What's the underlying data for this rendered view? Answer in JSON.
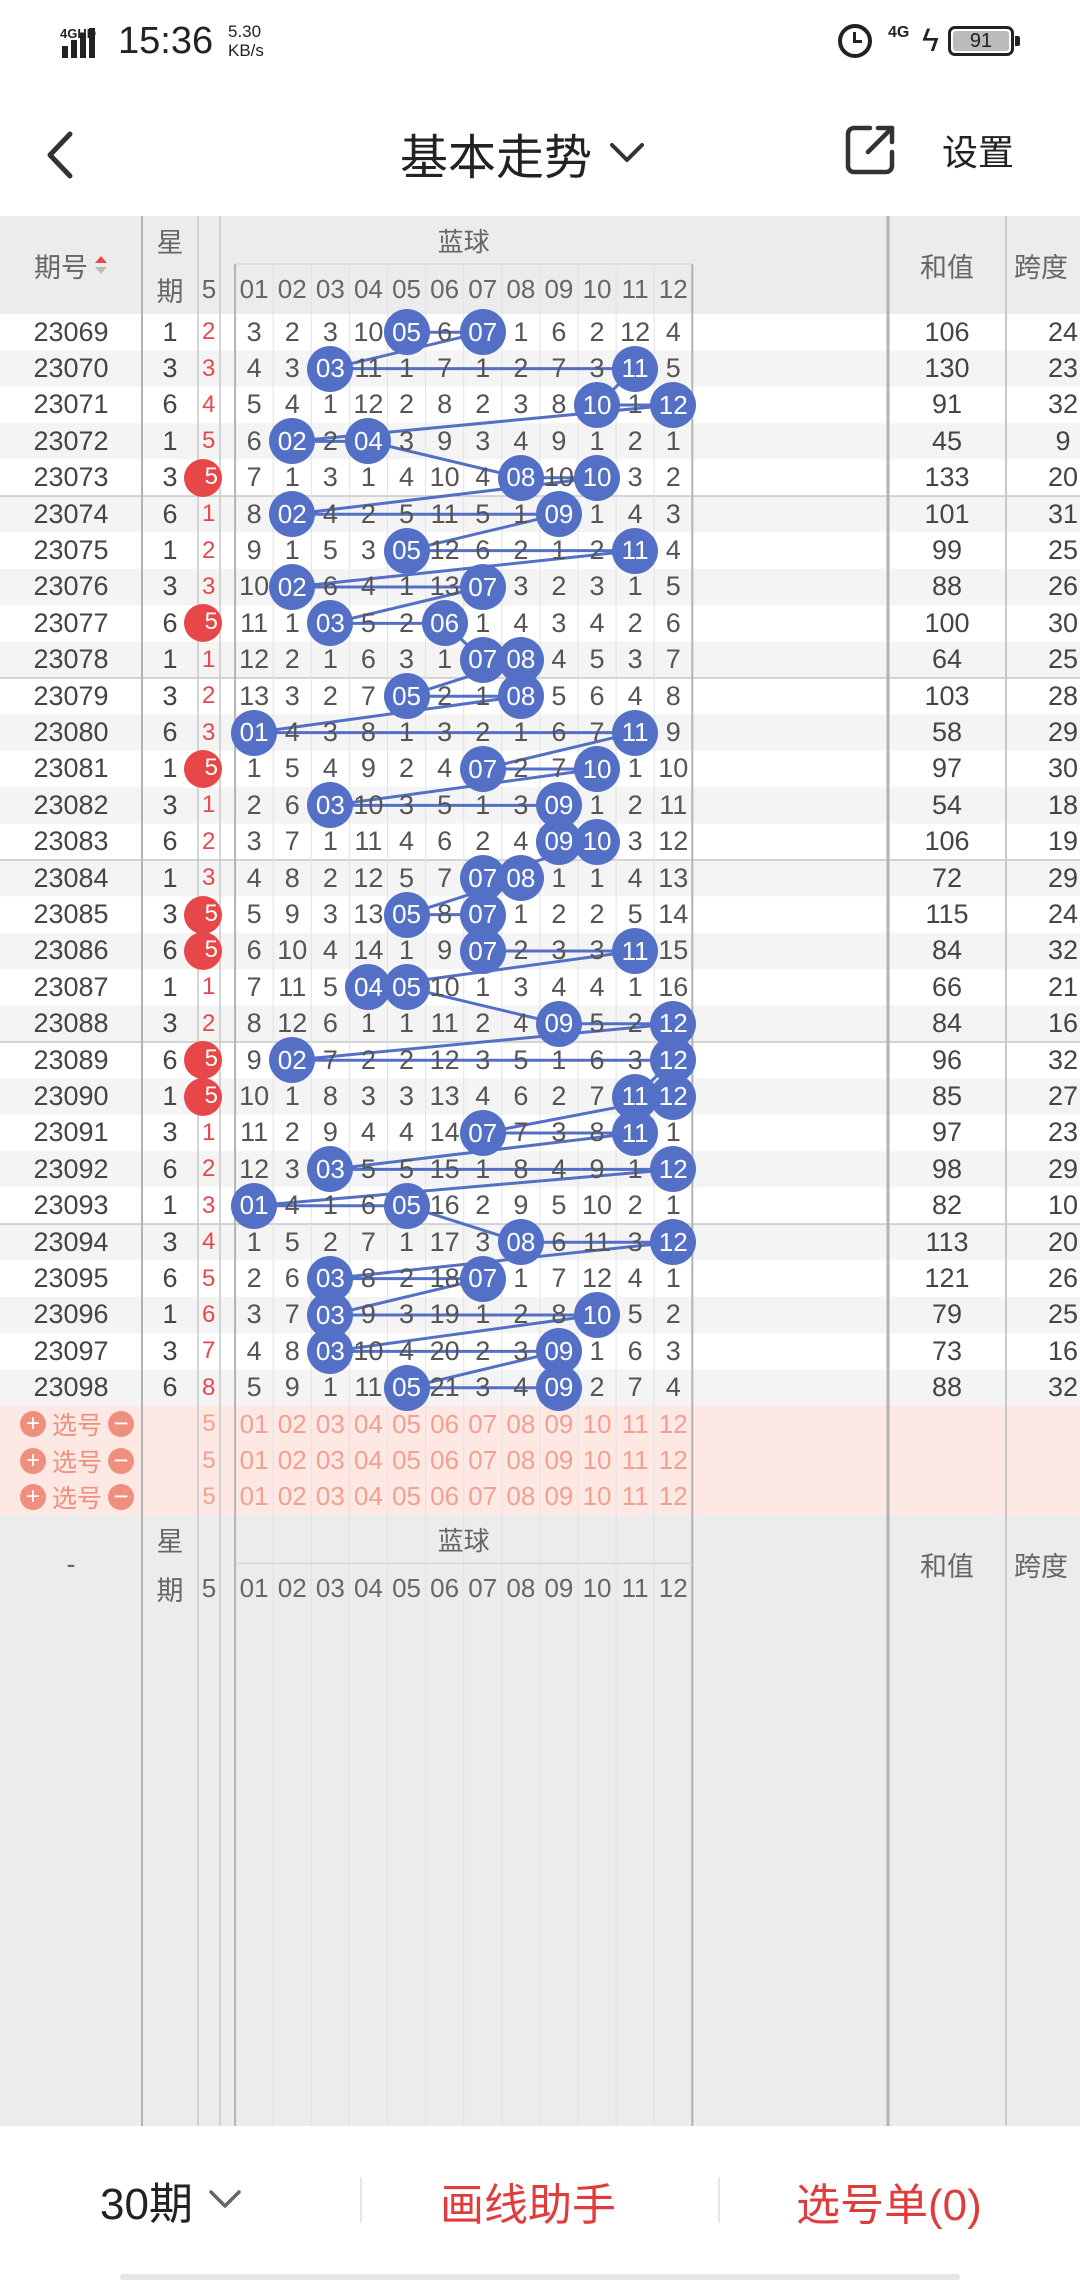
{
  "status_bar": {
    "network": "4GHD",
    "time": "15:36",
    "speed_value": "5.30",
    "speed_unit": "KB/s",
    "net2": "4G",
    "battery": "91"
  },
  "nav": {
    "title": "基本走势",
    "settings": "设置"
  },
  "table": {
    "header": {
      "issue": "期号",
      "week_1": "星",
      "week_2": "期",
      "blue": "蓝球",
      "sum": "和值",
      "span": "跨度",
      "partial_col": "5",
      "cols": [
        "01",
        "02",
        "03",
        "04",
        "05",
        "06",
        "07",
        "08",
        "09",
        "10",
        "11",
        "12"
      ]
    },
    "rows": [
      {
        "issue": "23069",
        "week": "1",
        "left": "2",
        "nums": [
          "3",
          "2",
          "3",
          "10",
          "05",
          "6",
          "07",
          "1",
          "6",
          "2",
          "12",
          "4"
        ],
        "sum": "106",
        "span": "24",
        "hits": [
          5,
          7
        ],
        "red": false
      },
      {
        "issue": "23070",
        "week": "3",
        "left": "3",
        "nums": [
          "4",
          "3",
          "03",
          "11",
          "1",
          "7",
          "1",
          "2",
          "7",
          "3",
          "11",
          "5"
        ],
        "sum": "130",
        "span": "23",
        "hits": [
          3,
          11
        ],
        "red": false
      },
      {
        "issue": "23071",
        "week": "6",
        "left": "4",
        "nums": [
          "5",
          "4",
          "1",
          "12",
          "2",
          "8",
          "2",
          "3",
          "8",
          "10",
          "1",
          "12"
        ],
        "sum": "91",
        "span": "32",
        "hits": [
          10,
          12
        ],
        "red": false
      },
      {
        "issue": "23072",
        "week": "1",
        "left": "5",
        "nums": [
          "6",
          "02",
          "2",
          "04",
          "3",
          "9",
          "3",
          "4",
          "9",
          "1",
          "2",
          "1"
        ],
        "sum": "45",
        "span": "9",
        "hits": [
          2,
          4
        ],
        "red": false
      },
      {
        "issue": "23073",
        "week": "3",
        "left": "5",
        "nums": [
          "7",
          "1",
          "3",
          "1",
          "4",
          "10",
          "4",
          "08",
          "10",
          "10",
          "3",
          "2"
        ],
        "sum": "133",
        "span": "20",
        "hits": [
          8,
          10
        ],
        "red": true
      },
      {
        "issue": "23074",
        "week": "6",
        "left": "1",
        "nums": [
          "8",
          "02",
          "4",
          "2",
          "5",
          "11",
          "5",
          "1",
          "09",
          "1",
          "4",
          "3"
        ],
        "sum": "101",
        "span": "31",
        "hits": [
          2,
          9
        ],
        "red": false
      },
      {
        "issue": "23075",
        "week": "1",
        "left": "2",
        "nums": [
          "9",
          "1",
          "5",
          "3",
          "05",
          "12",
          "6",
          "2",
          "1",
          "2",
          "11",
          "4"
        ],
        "sum": "99",
        "span": "25",
        "hits": [
          5,
          11
        ],
        "red": false
      },
      {
        "issue": "23076",
        "week": "3",
        "left": "3",
        "nums": [
          "10",
          "02",
          "6",
          "4",
          "1",
          "13",
          "07",
          "3",
          "2",
          "3",
          "1",
          "5"
        ],
        "sum": "88",
        "span": "26",
        "hits": [
          2,
          7
        ],
        "red": false
      },
      {
        "issue": "23077",
        "week": "6",
        "left": "5",
        "nums": [
          "11",
          "1",
          "03",
          "5",
          "2",
          "06",
          "1",
          "4",
          "3",
          "4",
          "2",
          "6"
        ],
        "sum": "100",
        "span": "30",
        "hits": [
          3,
          6
        ],
        "red": true
      },
      {
        "issue": "23078",
        "week": "1",
        "left": "1",
        "nums": [
          "12",
          "2",
          "1",
          "6",
          "3",
          "1",
          "07",
          "08",
          "4",
          "5",
          "3",
          "7"
        ],
        "sum": "64",
        "span": "25",
        "hits": [
          7,
          8
        ],
        "red": false
      },
      {
        "issue": "23079",
        "week": "3",
        "left": "2",
        "nums": [
          "13",
          "3",
          "2",
          "7",
          "05",
          "2",
          "1",
          "08",
          "5",
          "6",
          "4",
          "8"
        ],
        "sum": "103",
        "span": "28",
        "hits": [
          5,
          8
        ],
        "red": false
      },
      {
        "issue": "23080",
        "week": "6",
        "left": "3",
        "nums": [
          "01",
          "4",
          "3",
          "8",
          "1",
          "3",
          "2",
          "1",
          "6",
          "7",
          "11",
          "9"
        ],
        "sum": "58",
        "span": "29",
        "hits": [
          1,
          11
        ],
        "red": false
      },
      {
        "issue": "23081",
        "week": "1",
        "left": "5",
        "nums": [
          "1",
          "5",
          "4",
          "9",
          "2",
          "4",
          "07",
          "2",
          "7",
          "10",
          "1",
          "10"
        ],
        "sum": "97",
        "span": "30",
        "hits": [
          7,
          10
        ],
        "red": true
      },
      {
        "issue": "23082",
        "week": "3",
        "left": "1",
        "nums": [
          "2",
          "6",
          "03",
          "10",
          "3",
          "5",
          "1",
          "3",
          "09",
          "1",
          "2",
          "11"
        ],
        "sum": "54",
        "span": "18",
        "hits": [
          3,
          9
        ],
        "red": false
      },
      {
        "issue": "23083",
        "week": "6",
        "left": "2",
        "nums": [
          "3",
          "7",
          "1",
          "11",
          "4",
          "6",
          "2",
          "4",
          "09",
          "10",
          "3",
          "12"
        ],
        "sum": "106",
        "span": "19",
        "hits": [
          9,
          10
        ],
        "red": false
      },
      {
        "issue": "23084",
        "week": "1",
        "left": "3",
        "nums": [
          "4",
          "8",
          "2",
          "12",
          "5",
          "7",
          "07",
          "08",
          "1",
          "1",
          "4",
          "13"
        ],
        "sum": "72",
        "span": "29",
        "hits": [
          7,
          8
        ],
        "red": false
      },
      {
        "issue": "23085",
        "week": "3",
        "left": "5",
        "nums": [
          "5",
          "9",
          "3",
          "13",
          "05",
          "8",
          "07",
          "1",
          "2",
          "2",
          "5",
          "14"
        ],
        "sum": "115",
        "span": "24",
        "hits": [
          5,
          7
        ],
        "red": true
      },
      {
        "issue": "23086",
        "week": "6",
        "left": "5",
        "nums": [
          "6",
          "10",
          "4",
          "14",
          "1",
          "9",
          "07",
          "2",
          "3",
          "3",
          "11",
          "15"
        ],
        "sum": "84",
        "span": "32",
        "hits": [
          7,
          11
        ],
        "red": true
      },
      {
        "issue": "23087",
        "week": "1",
        "left": "1",
        "nums": [
          "7",
          "11",
          "5",
          "04",
          "05",
          "10",
          "1",
          "3",
          "4",
          "4",
          "1",
          "16"
        ],
        "sum": "66",
        "span": "21",
        "hits": [
          4,
          5
        ],
        "red": false
      },
      {
        "issue": "23088",
        "week": "3",
        "left": "2",
        "nums": [
          "8",
          "12",
          "6",
          "1",
          "1",
          "11",
          "2",
          "4",
          "09",
          "5",
          "2",
          "12"
        ],
        "sum": "84",
        "span": "16",
        "hits": [
          9,
          12
        ],
        "red": false
      },
      {
        "issue": "23089",
        "week": "6",
        "left": "5",
        "nums": [
          "9",
          "02",
          "7",
          "2",
          "2",
          "12",
          "3",
          "5",
          "1",
          "6",
          "3",
          "12"
        ],
        "sum": "96",
        "span": "32",
        "hits": [
          2,
          12
        ],
        "red": true
      },
      {
        "issue": "23090",
        "week": "1",
        "left": "5",
        "nums": [
          "10",
          "1",
          "8",
          "3",
          "3",
          "13",
          "4",
          "6",
          "2",
          "7",
          "11",
          "12"
        ],
        "sum": "85",
        "span": "27",
        "hits": [
          11,
          12
        ],
        "red": true
      },
      {
        "issue": "23091",
        "week": "3",
        "left": "1",
        "nums": [
          "11",
          "2",
          "9",
          "4",
          "4",
          "14",
          "07",
          "7",
          "3",
          "8",
          "11",
          "1"
        ],
        "sum": "97",
        "span": "23",
        "hits": [
          7,
          11
        ],
        "red": false
      },
      {
        "issue": "23092",
        "week": "6",
        "left": "2",
        "nums": [
          "12",
          "3",
          "03",
          "5",
          "5",
          "15",
          "1",
          "8",
          "4",
          "9",
          "1",
          "12"
        ],
        "sum": "98",
        "span": "29",
        "hits": [
          3,
          12
        ],
        "red": false
      },
      {
        "issue": "23093",
        "week": "1",
        "left": "3",
        "nums": [
          "01",
          "4",
          "1",
          "6",
          "05",
          "16",
          "2",
          "9",
          "5",
          "10",
          "2",
          "1"
        ],
        "sum": "82",
        "span": "10",
        "hits": [
          1,
          5
        ],
        "red": false
      },
      {
        "issue": "23094",
        "week": "3",
        "left": "4",
        "nums": [
          "1",
          "5",
          "2",
          "7",
          "1",
          "17",
          "3",
          "08",
          "6",
          "11",
          "3",
          "12"
        ],
        "sum": "113",
        "span": "20",
        "hits": [
          8,
          12
        ],
        "red": false
      },
      {
        "issue": "23095",
        "week": "6",
        "left": "5",
        "nums": [
          "2",
          "6",
          "03",
          "8",
          "2",
          "18",
          "07",
          "1",
          "7",
          "12",
          "4",
          "1"
        ],
        "sum": "121",
        "span": "26",
        "hits": [
          3,
          7
        ],
        "red": false
      },
      {
        "issue": "23096",
        "week": "1",
        "left": "6",
        "nums": [
          "3",
          "7",
          "03",
          "9",
          "3",
          "19",
          "1",
          "2",
          "8",
          "10",
          "5",
          "2"
        ],
        "sum": "79",
        "span": "25",
        "hits": [
          3,
          10
        ],
        "red": false
      },
      {
        "issue": "23097",
        "week": "3",
        "left": "7",
        "nums": [
          "4",
          "8",
          "03",
          "10",
          "4",
          "20",
          "2",
          "3",
          "09",
          "1",
          "6",
          "3"
        ],
        "sum": "73",
        "span": "16",
        "hits": [
          3,
          9
        ],
        "red": false
      },
      {
        "issue": "23098",
        "week": "6",
        "left": "8",
        "nums": [
          "5",
          "9",
          "1",
          "11",
          "05",
          "21",
          "3",
          "4",
          "09",
          "2",
          "7",
          "4"
        ],
        "sum": "88",
        "span": "32",
        "hits": [
          5,
          9
        ],
        "red": false
      }
    ],
    "select_label": "选号",
    "select_rows": 3
  },
  "footer_header": {
    "issue": "-",
    "week_1": "星",
    "week_2": "期",
    "blue": "蓝球",
    "sum": "和值",
    "span": "跨度"
  },
  "bottom": {
    "period": "30期",
    "draw_helper": "画线助手",
    "selection": "选号单(0)"
  },
  "colors": {
    "ball": "#5470c6",
    "red_ball": "#e8474a",
    "accent_red": "#e03c3c",
    "select_bg": "#fde8e4"
  }
}
